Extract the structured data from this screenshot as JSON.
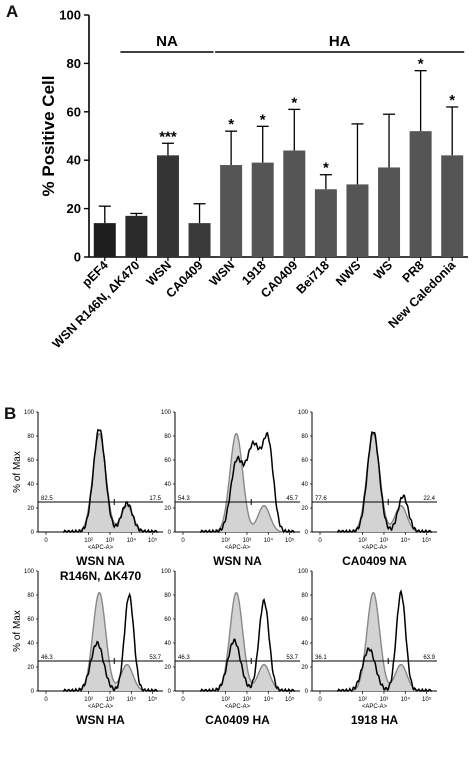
{
  "panel_a_label": "A",
  "panel_b_label": "B",
  "chart_data": [
    {
      "type": "bar",
      "ylabel": "% Positive Cell",
      "ylim": [
        0,
        100
      ],
      "yticks": [
        "0",
        "20",
        "40",
        "60",
        "80",
        "100"
      ],
      "group_labels": {
        "na": "NA",
        "ha": "HA"
      },
      "categories": [
        "pEF4",
        "WSN R146N, ΔK470",
        "WSN",
        "CA0409",
        "WSN",
        "1918",
        "CA0409",
        "Bei718",
        "NWS",
        "WS",
        "PR8",
        "New Caledonia"
      ],
      "values": [
        14,
        17,
        42,
        14,
        38,
        39,
        44,
        28,
        30,
        37,
        52,
        42
      ],
      "errors": [
        7,
        1,
        5,
        8,
        14,
        15,
        17,
        6,
        25,
        22,
        25,
        20
      ],
      "significance": [
        "",
        "",
        "***",
        "",
        "*",
        "*",
        "*",
        "*",
        "",
        "",
        "*",
        "*"
      ],
      "bar_colors": [
        "#1e1e1e",
        "#2a2a2a",
        "#353535",
        "#3a3a3a",
        "#555555",
        "#555555",
        "#555555",
        "#555555",
        "#555555",
        "#555555",
        "#555555",
        "#555555"
      ]
    },
    {
      "type": "line",
      "panels": [
        {
          "title": "WSN NA",
          "subtitle": "R146N, ΔK470",
          "left_pct": "82.5",
          "right_pct": "17.5",
          "control_peaks": [
            [
              2.5,
              0.82,
              0.3
            ],
            [
              3.8,
              0.22,
              0.28
            ]
          ],
          "test_peaks": [
            [
              2.5,
              0.86,
              0.28
            ],
            [
              3.8,
              0.24,
              0.26
            ]
          ]
        },
        {
          "title": "WSN NA",
          "subtitle": "",
          "left_pct": "54.3",
          "right_pct": "45.7",
          "control_peaks": [
            [
              2.5,
              0.82,
              0.3
            ],
            [
              3.8,
              0.22,
              0.28
            ]
          ],
          "test_peaks": [
            [
              2.5,
              0.55,
              0.28
            ],
            [
              3.3,
              0.72,
              0.35
            ],
            [
              4.0,
              0.7,
              0.25
            ]
          ]
        },
        {
          "title": "CA0409 NA",
          "subtitle": "",
          "left_pct": "77.6",
          "right_pct": "22.4",
          "control_peaks": [
            [
              2.5,
              0.82,
              0.3
            ],
            [
              3.8,
              0.22,
              0.28
            ]
          ],
          "test_peaks": [
            [
              2.5,
              0.84,
              0.28
            ],
            [
              3.9,
              0.3,
              0.24
            ]
          ]
        },
        {
          "title": "WSN HA",
          "subtitle": "",
          "left_pct": "46.3",
          "right_pct": "53.7",
          "control_peaks": [
            [
              2.5,
              0.82,
              0.3
            ],
            [
              3.8,
              0.22,
              0.28
            ]
          ],
          "test_peaks": [
            [
              2.4,
              0.4,
              0.3
            ],
            [
              3.9,
              0.8,
              0.22
            ]
          ]
        },
        {
          "title": "CA0409 HA",
          "subtitle": "",
          "left_pct": "46.3",
          "right_pct": "53.7",
          "control_peaks": [
            [
              2.5,
              0.82,
              0.3
            ],
            [
              3.8,
              0.22,
              0.28
            ]
          ],
          "test_peaks": [
            [
              2.4,
              0.42,
              0.3
            ],
            [
              3.8,
              0.75,
              0.24
            ]
          ]
        },
        {
          "title": "1918 HA",
          "subtitle": "",
          "left_pct": "36.1",
          "right_pct": "63.9",
          "control_peaks": [
            [
              2.5,
              0.82,
              0.3
            ],
            [
              3.8,
              0.22,
              0.28
            ]
          ],
          "test_peaks": [
            [
              2.3,
              0.35,
              0.3
            ],
            [
              3.8,
              0.82,
              0.22
            ]
          ]
        }
      ],
      "ylabel": "% of Max",
      "yticks": [
        "0",
        "20",
        "40",
        "60",
        "80",
        "100"
      ],
      "xlabel": "<APC-A>",
      "xticks": [
        "0",
        "10²",
        "10³",
        "10⁴",
        "10⁵"
      ]
    }
  ]
}
